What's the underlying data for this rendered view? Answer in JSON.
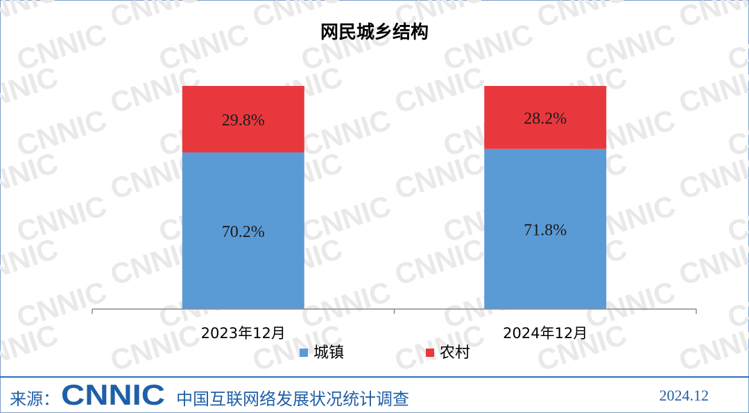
{
  "colors": {
    "urban": "#5b9bd5",
    "rural": "#e8383d",
    "brand_blue": "#1f5fa8"
  },
  "watermark_text": "CNNIC",
  "chart_data": {
    "type": "bar",
    "stacked": true,
    "title": "网民城乡结构",
    "categories": [
      "2023年12月",
      "2024年12月"
    ],
    "series": [
      {
        "name": "城镇",
        "values": [
          70.2,
          71.8
        ],
        "labels": [
          "70.2%",
          "71.8%"
        ],
        "color": "#5b9bd5"
      },
      {
        "name": "农村",
        "values": [
          29.8,
          28.2
        ],
        "labels": [
          "29.8%",
          "28.2%"
        ],
        "color": "#e8383d"
      }
    ],
    "ylim": [
      0,
      100
    ],
    "unit": "%",
    "grid": false,
    "legend_position": "bottom"
  },
  "footer": {
    "source_label": "来源：",
    "logo_text": "CNNIC",
    "organization": "中国互联网络发展状况统计调查",
    "date": "2024.12"
  }
}
